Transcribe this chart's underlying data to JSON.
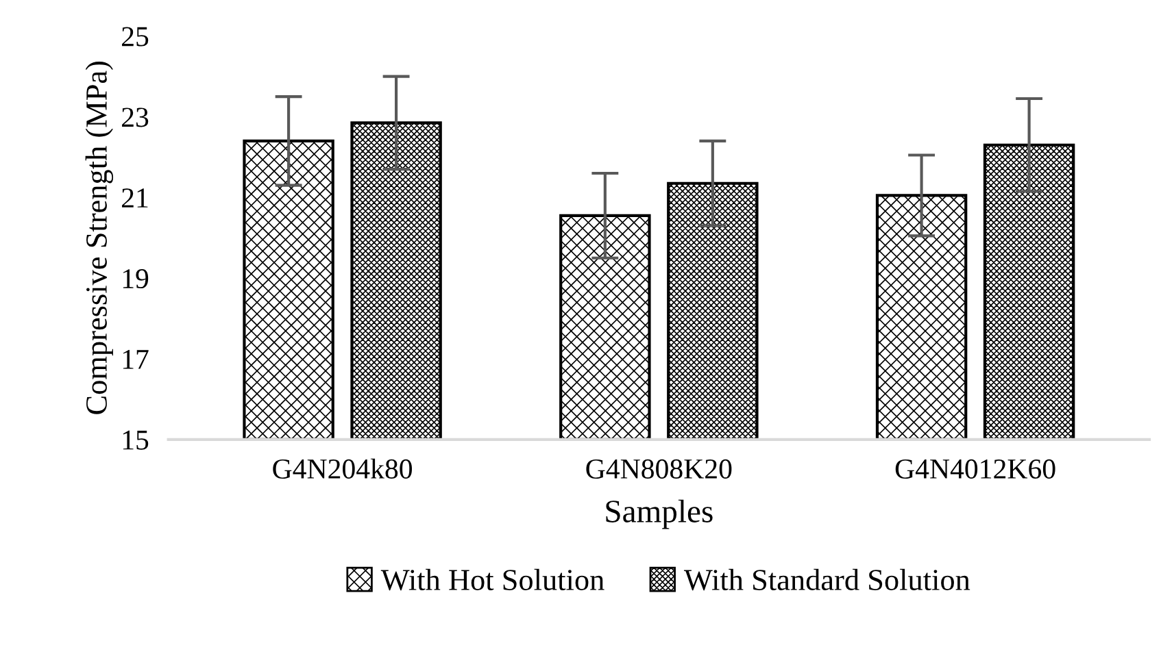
{
  "chart_data": {
    "type": "bar",
    "xlabel": "Samples",
    "ylabel": "Compressive Strength (MPa)",
    "categories": [
      "G4N204k80",
      "G4N808K20",
      "G4N4012K60"
    ],
    "series": [
      {
        "name": "With Hot Solution",
        "color": "#000000",
        "values": [
          22.4,
          20.55,
          21.05
        ],
        "errors": [
          1.1,
          1.05,
          1.0
        ]
      },
      {
        "name": "With Standard Solution",
        "color": "#000000",
        "values": [
          22.85,
          21.35,
          22.3
        ],
        "errors": [
          1.15,
          1.05,
          1.15
        ]
      }
    ],
    "ylim": [
      15,
      25
    ],
    "yticks": [
      15,
      17,
      19,
      21,
      23,
      25
    ],
    "grid": false,
    "legend": "bottom"
  }
}
